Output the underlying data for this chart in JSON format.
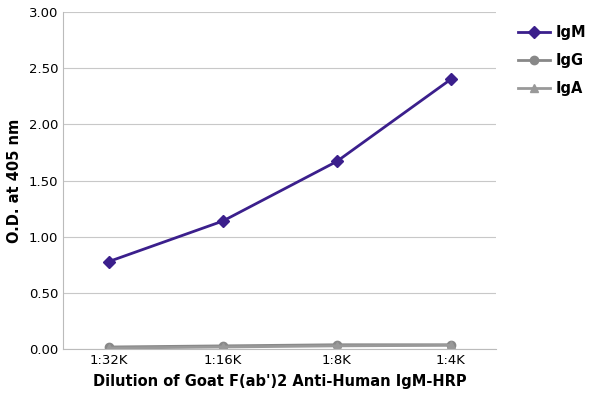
{
  "x_labels": [
    "1:32K",
    "1:16K",
    "1:8K",
    "1:4K"
  ],
  "x_values": [
    1,
    2,
    3,
    4
  ],
  "IgM_values": [
    0.78,
    1.14,
    1.67,
    2.4
  ],
  "IgG_values": [
    0.02,
    0.03,
    0.04,
    0.04
  ],
  "IgA_values": [
    0.01,
    0.02,
    0.03,
    0.035
  ],
  "IgM_color": "#3b1f8c",
  "IgG_color": "#888888",
  "IgA_color": "#999999",
  "ylabel": "O.D. at 405 nm",
  "xlabel": "Dilution of Goat F(ab')2 Anti-Human IgM-HRP",
  "ylim": [
    0.0,
    3.0
  ],
  "yticks": [
    0.0,
    0.5,
    1.0,
    1.5,
    2.0,
    2.5,
    3.0
  ],
  "legend_labels": [
    "IgM",
    "IgG",
    "IgA"
  ],
  "background_color": "#ffffff",
  "line_width": 2.0,
  "marker_size": 6
}
